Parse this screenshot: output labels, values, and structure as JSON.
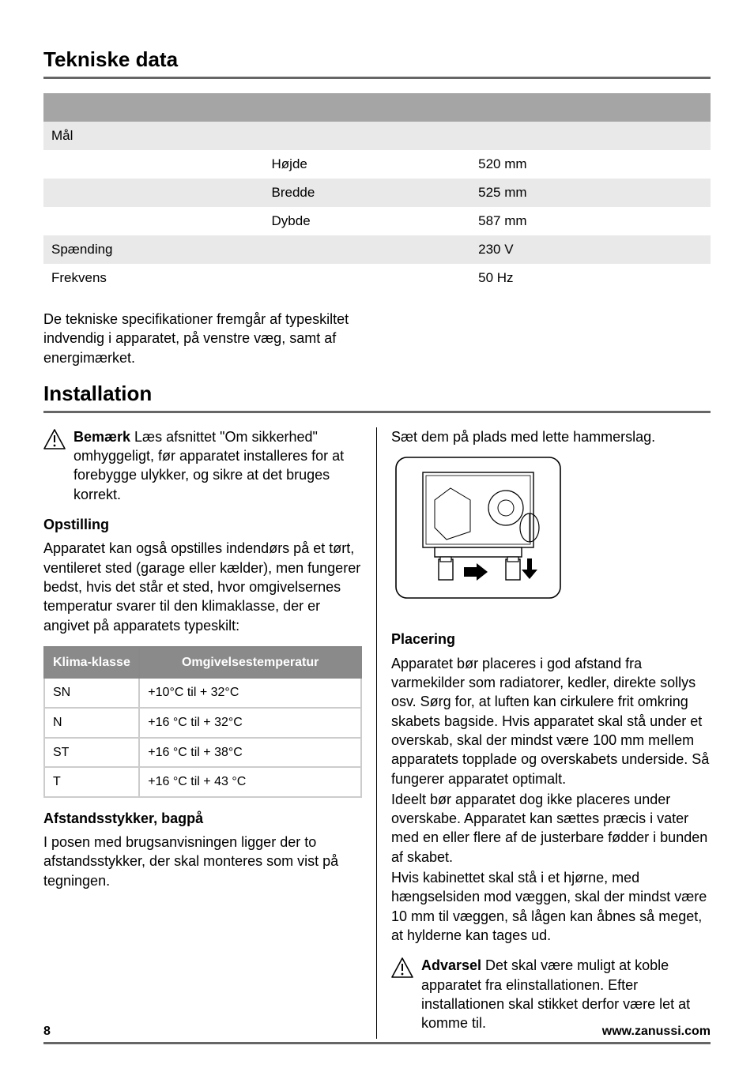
{
  "section1": {
    "title": "Tekniske data",
    "spec_table": {
      "rows": [
        {
          "c1": "",
          "c2": "",
          "c3": "",
          "shade": "header-row"
        },
        {
          "c1": "Mål",
          "c2": "",
          "c3": "",
          "shade": "shade"
        },
        {
          "c1": "",
          "c2": "Højde",
          "c3": "520 mm",
          "shade": ""
        },
        {
          "c1": "",
          "c2": "Bredde",
          "c3": "525 mm",
          "shade": "shade"
        },
        {
          "c1": "",
          "c2": "Dybde",
          "c3": "587 mm",
          "shade": ""
        },
        {
          "c1": "Spænding",
          "c2": "",
          "c3": "230 V",
          "shade": "shade"
        },
        {
          "c1": "Frekvens",
          "c2": "",
          "c3": "50 Hz",
          "shade": ""
        }
      ]
    },
    "after_spec": "De tekniske specifikationer fremgår af typeskiltet indvendig i apparatet, på venstre væg, samt af energimærket."
  },
  "section2": {
    "title": "Installation",
    "left": {
      "note_label": "Bemærk",
      "note_text": " Læs afsnittet \"Om sikkerhed\" omhyggeligt, før apparatet installeres for at forebygge ulykker, og sikre at det bruges korrekt.",
      "opstilling_head": "Opstilling",
      "opstilling_text": "Apparatet kan også opstilles indendørs på et tørt, ventileret sted (garage eller kælder), men fungerer bedst, hvis det står et sted, hvor omgivelsernes temperatur svarer til den klimaklasse, der er angivet på apparatets typeskilt:",
      "klima_table": {
        "headers": [
          "Klima-klasse",
          "Omgivelsestemperatur"
        ],
        "rows": [
          [
            "SN",
            "+10°C til + 32°C"
          ],
          [
            "N",
            "+16 °C til + 32°C"
          ],
          [
            "ST",
            "+16 °C til + 38°C"
          ],
          [
            "T",
            "+16 °C til + 43 °C"
          ]
        ]
      },
      "afstand_head": "Afstandsstykker, bagpå",
      "afstand_text": "I posen med brugsanvisningen ligger der to afstandsstykker, der skal monteres som vist på tegningen."
    },
    "right": {
      "intro": "Sæt dem på plads med lette hammerslag.",
      "placering_head": "Placering",
      "placering_p1": "Apparatet bør placeres i god afstand fra varmekilder som radiatorer, kedler, direkte sollys osv. Sørg for, at luften kan cirkulere frit omkring skabets bagside. Hvis apparatet skal stå under et overskab, skal der mindst være 100 mm mellem apparatets topplade og overskabets underside. Så fungerer apparatet optimalt.",
      "placering_p2": "Ideelt bør apparatet dog ikke placeres under overskabe. Apparatet kan sættes præcis i vater med en eller flere af de justerbare fødder i bunden af skabet.",
      "placering_p3": "Hvis kabinettet skal stå i et hjørne, med hængselsiden mod væggen, skal der mindst være 10 mm til væggen, så lågen kan åbnes så meget, at hylderne kan tages ud.",
      "warn_label": "Advarsel",
      "warn_text": " Det skal være muligt at koble apparatet fra elinstallationen. Efter installationen skal stikket derfor være let at komme til."
    }
  },
  "footer": {
    "page": "8",
    "url": "www.zanussi.com"
  },
  "colors": {
    "rule": "#666666",
    "header_row": "#a5a5a5",
    "shade_row": "#e9e9e9",
    "klima_header_bg": "#8a8a8a",
    "klima_border": "#888888"
  }
}
